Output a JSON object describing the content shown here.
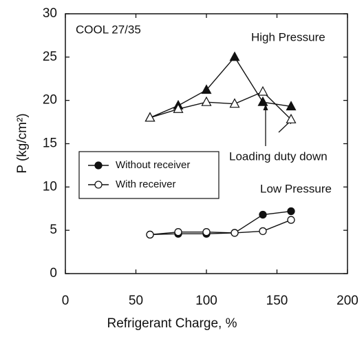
{
  "chart_data": {
    "type": "line",
    "xlabel": "Refrigerant Charge, %",
    "ylabel": "P (kg/cm²)",
    "xlim": [
      0,
      200
    ],
    "xticks": [
      0,
      50,
      100,
      150,
      200
    ],
    "ylim": [
      0,
      30
    ],
    "yticks": [
      0,
      5,
      10,
      15,
      20,
      25,
      30
    ],
    "x": [
      60,
      80,
      100,
      120,
      140,
      160
    ],
    "annotations": [
      "COOL 27/35",
      "High Pressure",
      "Low Pressure",
      "Loading duty down"
    ],
    "series": [
      {
        "name": "Without receiver",
        "marker": "circle",
        "filled": true,
        "color": "#111",
        "values": [
          4.5,
          4.6,
          4.6,
          4.7,
          6.8,
          7.2
        ]
      },
      {
        "name": "With receiver",
        "marker": "circle",
        "filled": false,
        "color": "#111",
        "values": [
          4.5,
          4.8,
          4.8,
          4.7,
          4.9,
          6.2
        ]
      },
      {
        "marker": "triangle",
        "filled": true,
        "color": "#111",
        "values": [
          18,
          19.4,
          21.2,
          25,
          19.8,
          19.3
        ]
      },
      {
        "marker": "triangle",
        "filled": false,
        "color": "#111",
        "values": [
          18,
          19,
          19.8,
          19.6,
          21,
          17.8
        ]
      }
    ]
  }
}
